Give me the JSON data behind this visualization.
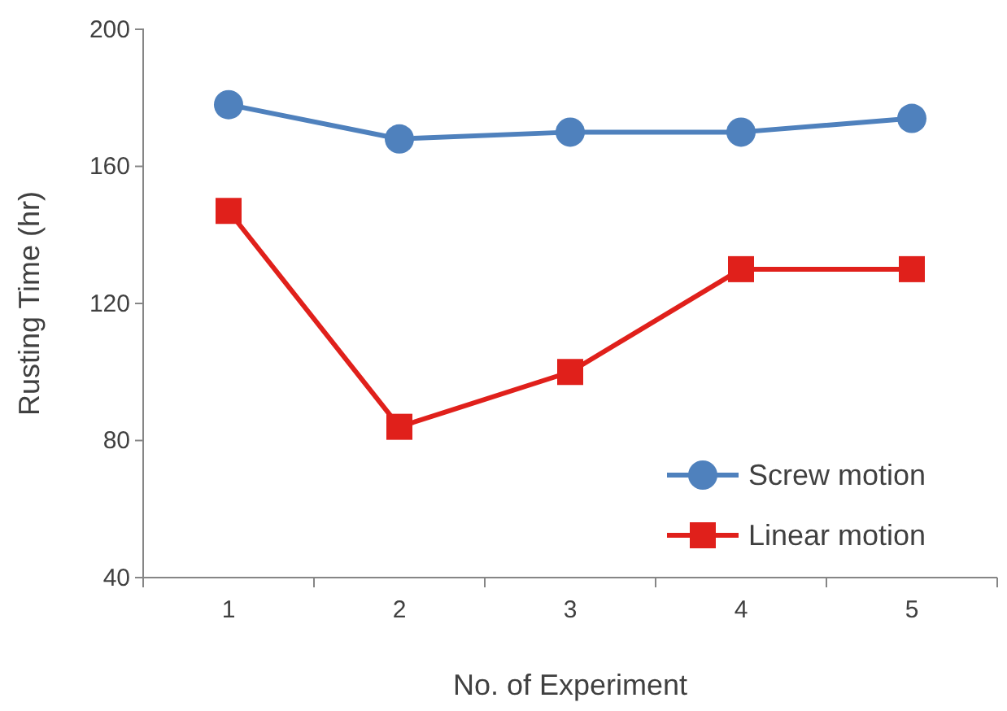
{
  "chart_data": {
    "type": "line",
    "xlabel": "No. of Experiment",
    "ylabel": "Rusting Time (hr)",
    "categories": [
      "1",
      "2",
      "3",
      "4",
      "5"
    ],
    "series": [
      {
        "name": "Screw motion",
        "color": "#4f81bd",
        "marker": "circle",
        "values": [
          178,
          168,
          170,
          170,
          174
        ]
      },
      {
        "name": "Linear motion",
        "color": "#e0201b",
        "marker": "square",
        "values": [
          147,
          84,
          100,
          130,
          130
        ]
      }
    ],
    "ylim": [
      40,
      200
    ],
    "yticks": [
      40,
      80,
      120,
      160,
      200
    ],
    "grid": false,
    "legend": "bottom right"
  }
}
